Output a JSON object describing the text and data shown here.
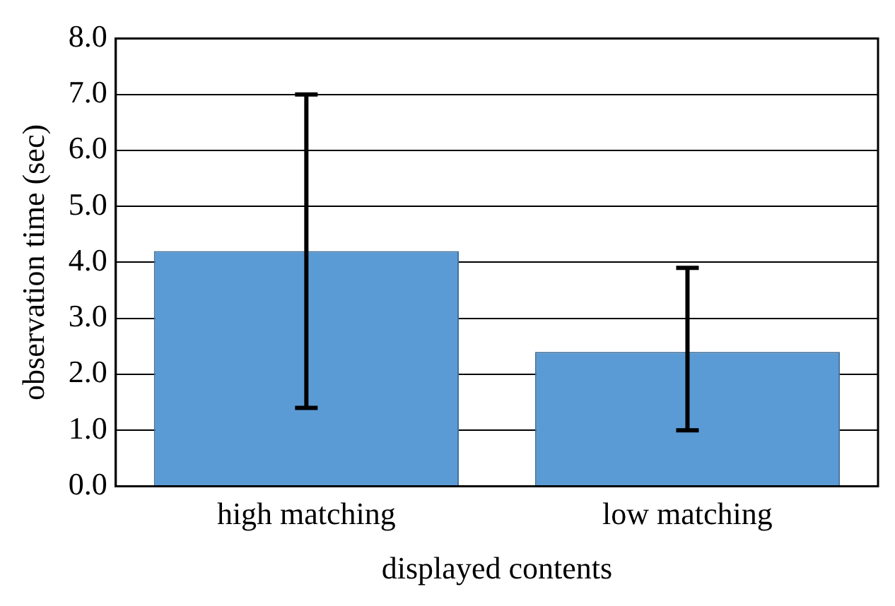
{
  "chart_data": {
    "type": "bar",
    "xlabel": "displayed contents",
    "ylabel": "observation time (sec)",
    "categories": [
      "high matching",
      "low matching"
    ],
    "values": [
      4.2,
      2.4
    ],
    "errors": [
      [
        1.4,
        7.0
      ],
      [
        1.0,
        3.9
      ]
    ],
    "color": "#5b9bd5",
    "ylim": [
      0,
      8
    ],
    "yticks": [
      {
        "value": 0,
        "label": "0.0"
      },
      {
        "value": 1,
        "label": "1.0"
      },
      {
        "value": 2,
        "label": "2.0"
      },
      {
        "value": 3,
        "label": "3.0"
      },
      {
        "value": 4,
        "label": "4.0"
      },
      {
        "value": 5,
        "label": "5.0"
      },
      {
        "value": 6,
        "label": "6.0"
      },
      {
        "value": 7,
        "label": "7.0"
      },
      {
        "value": 8,
        "label": "8.0"
      }
    ],
    "grid": "y",
    "legend": false
  }
}
